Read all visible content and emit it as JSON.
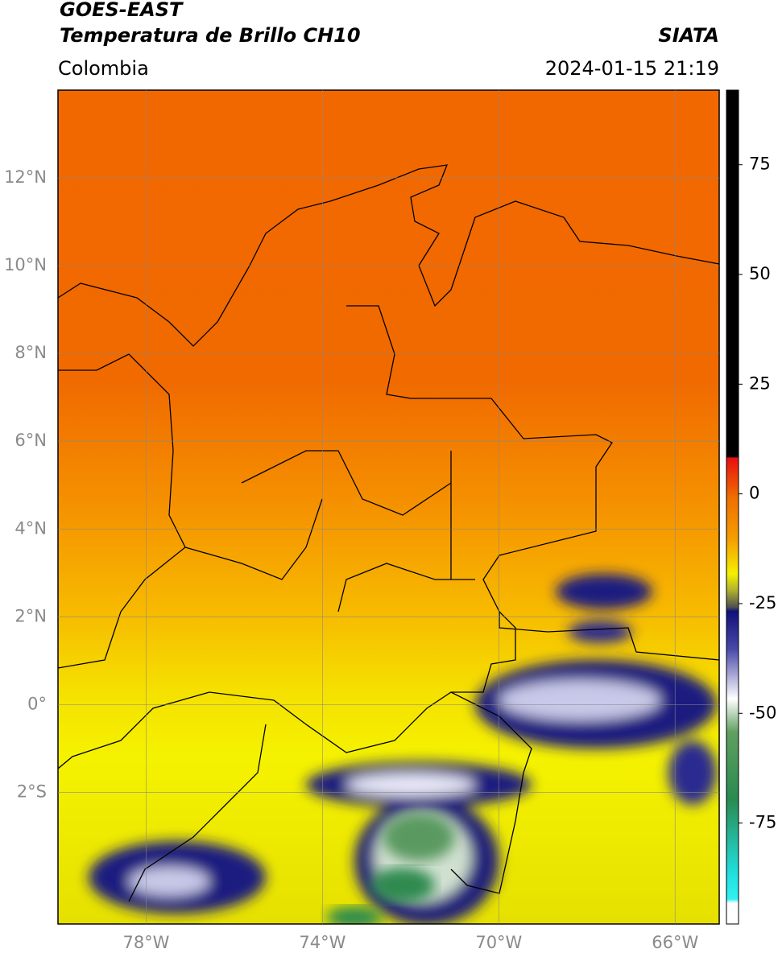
{
  "header": {
    "satellite": "GOES-EAST",
    "product": "Temperatura de Brillo CH10",
    "source": "SIATA",
    "region": "Colombia",
    "datetime": "2024-01-15 21:19"
  },
  "map": {
    "lon_range": [
      -80,
      -65
    ],
    "lat_range": [
      -5,
      14
    ],
    "lon_ticks": [
      {
        "value": -78,
        "label": "78°W"
      },
      {
        "value": -74,
        "label": "74°W"
      },
      {
        "value": -70,
        "label": "70°W"
      },
      {
        "value": -66,
        "label": "66°W"
      }
    ],
    "lat_ticks": [
      {
        "value": 12,
        "label": "12°N"
      },
      {
        "value": 10,
        "label": "10°N"
      },
      {
        "value": 8,
        "label": "8°N"
      },
      {
        "value": 6,
        "label": "6°N"
      },
      {
        "value": 4,
        "label": "4°N"
      },
      {
        "value": 2,
        "label": "2°N"
      },
      {
        "value": 0,
        "label": "0°"
      },
      {
        "value": -2,
        "label": "2°S"
      }
    ]
  },
  "colorbar": {
    "range": [
      -98,
      92
    ],
    "ticks": [
      75,
      50,
      25,
      0,
      -25,
      -50,
      -75
    ]
  }
}
